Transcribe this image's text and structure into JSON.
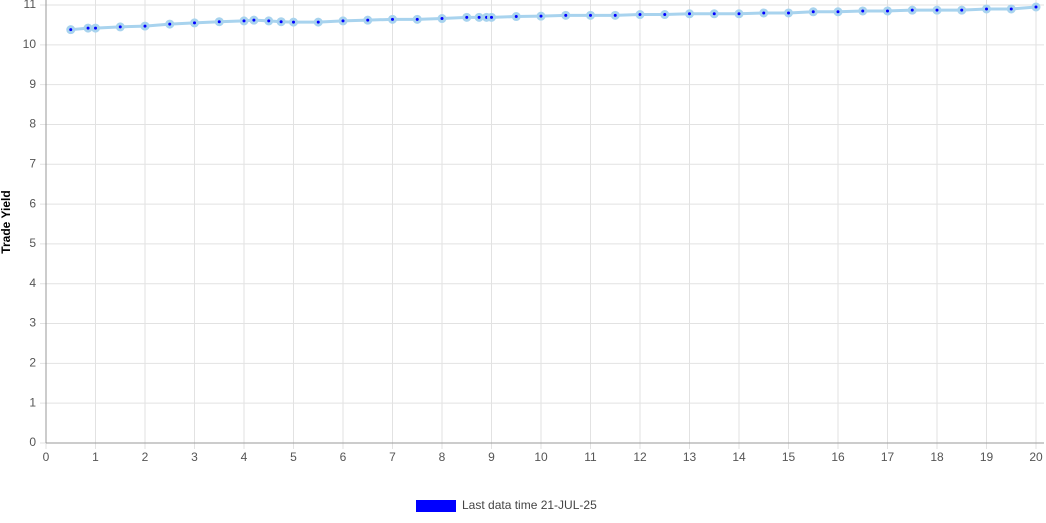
{
  "chart_data": {
    "type": "line",
    "y_label": "Trade Yield",
    "x": [
      0.5,
      0.85,
      1,
      1.5,
      2,
      2.5,
      3,
      3.5,
      4,
      4.2,
      4.5,
      4.75,
      5,
      5.5,
      6,
      6.5,
      7,
      7.5,
      8,
      8.5,
      8.75,
      8.9,
      9,
      9.5,
      10,
      10.5,
      11,
      11.5,
      12,
      12.5,
      13,
      13.5,
      14,
      14.5,
      15,
      15.5,
      16,
      16.5,
      17,
      17.5,
      18,
      18.5,
      19,
      19.5,
      20
    ],
    "series": [
      {
        "name": "Last data time 21-JUL-25",
        "color": "#0000ff",
        "line_color": "#a8d3ee",
        "values": [
          10.38,
          10.42,
          10.42,
          10.45,
          10.47,
          10.52,
          10.55,
          10.58,
          10.6,
          10.62,
          10.6,
          10.58,
          10.57,
          10.57,
          10.6,
          10.62,
          10.64,
          10.64,
          10.66,
          10.69,
          10.69,
          10.69,
          10.69,
          10.71,
          10.72,
          10.74,
          10.74,
          10.74,
          10.76,
          10.76,
          10.78,
          10.78,
          10.78,
          10.8,
          10.8,
          10.83,
          10.83,
          10.85,
          10.85,
          10.87,
          10.87,
          10.87,
          10.9,
          10.9,
          10.95
        ]
      }
    ],
    "xlim": [
      0,
      20
    ],
    "xticks": [
      0,
      1,
      2,
      3,
      4,
      5,
      6,
      7,
      8,
      9,
      10,
      11,
      12,
      13,
      14,
      15,
      16,
      17,
      18,
      19,
      20
    ],
    "ylim": [
      0,
      11
    ],
    "yticks": [
      0,
      1,
      2,
      3,
      4,
      5,
      6,
      7,
      8,
      9,
      10,
      11
    ],
    "grid": true,
    "legend": "bottom"
  }
}
